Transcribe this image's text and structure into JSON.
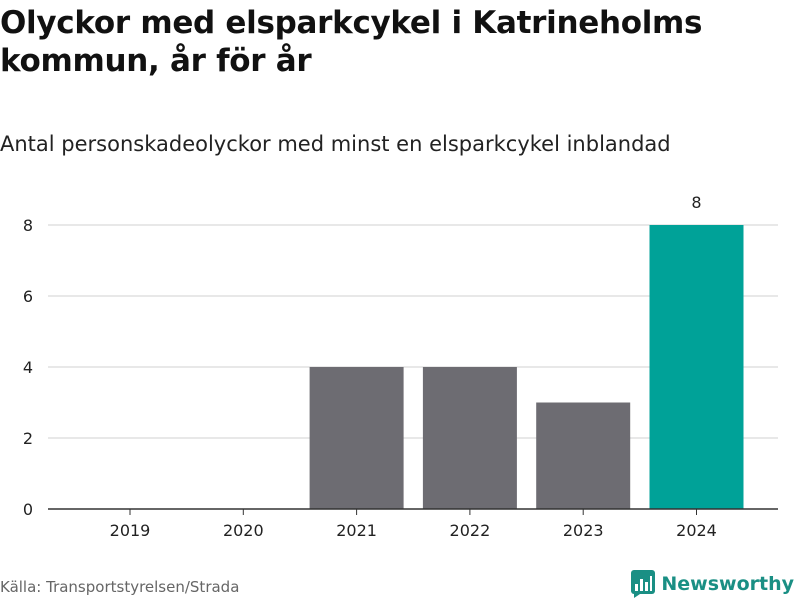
{
  "title": "Olyckor med elsparkcykel i Katrineholms kommun, år för år",
  "subtitle": "Antal personskadeolyckor med minst en elsparkcykel inblandad",
  "source": "Källa: Transportstyrelsen/Strada",
  "brand": "Newsworthy",
  "colors": {
    "bar": "#6d6c72",
    "highlight": "#00a298",
    "grid": "#d9d9d9",
    "axis": "#333333",
    "brand": "#1a8f84"
  },
  "chart_data": {
    "type": "bar",
    "categories": [
      "2019",
      "2020",
      "2021",
      "2022",
      "2023",
      "2024"
    ],
    "values": [
      0,
      0,
      4,
      4,
      3,
      8
    ],
    "highlight_index": 5,
    "data_labels": {
      "5": "8"
    },
    "yticks": [
      0,
      2,
      4,
      6,
      8
    ],
    "ylim": [
      0,
      8
    ],
    "xlabel": "",
    "ylabel": "",
    "grid": true
  }
}
